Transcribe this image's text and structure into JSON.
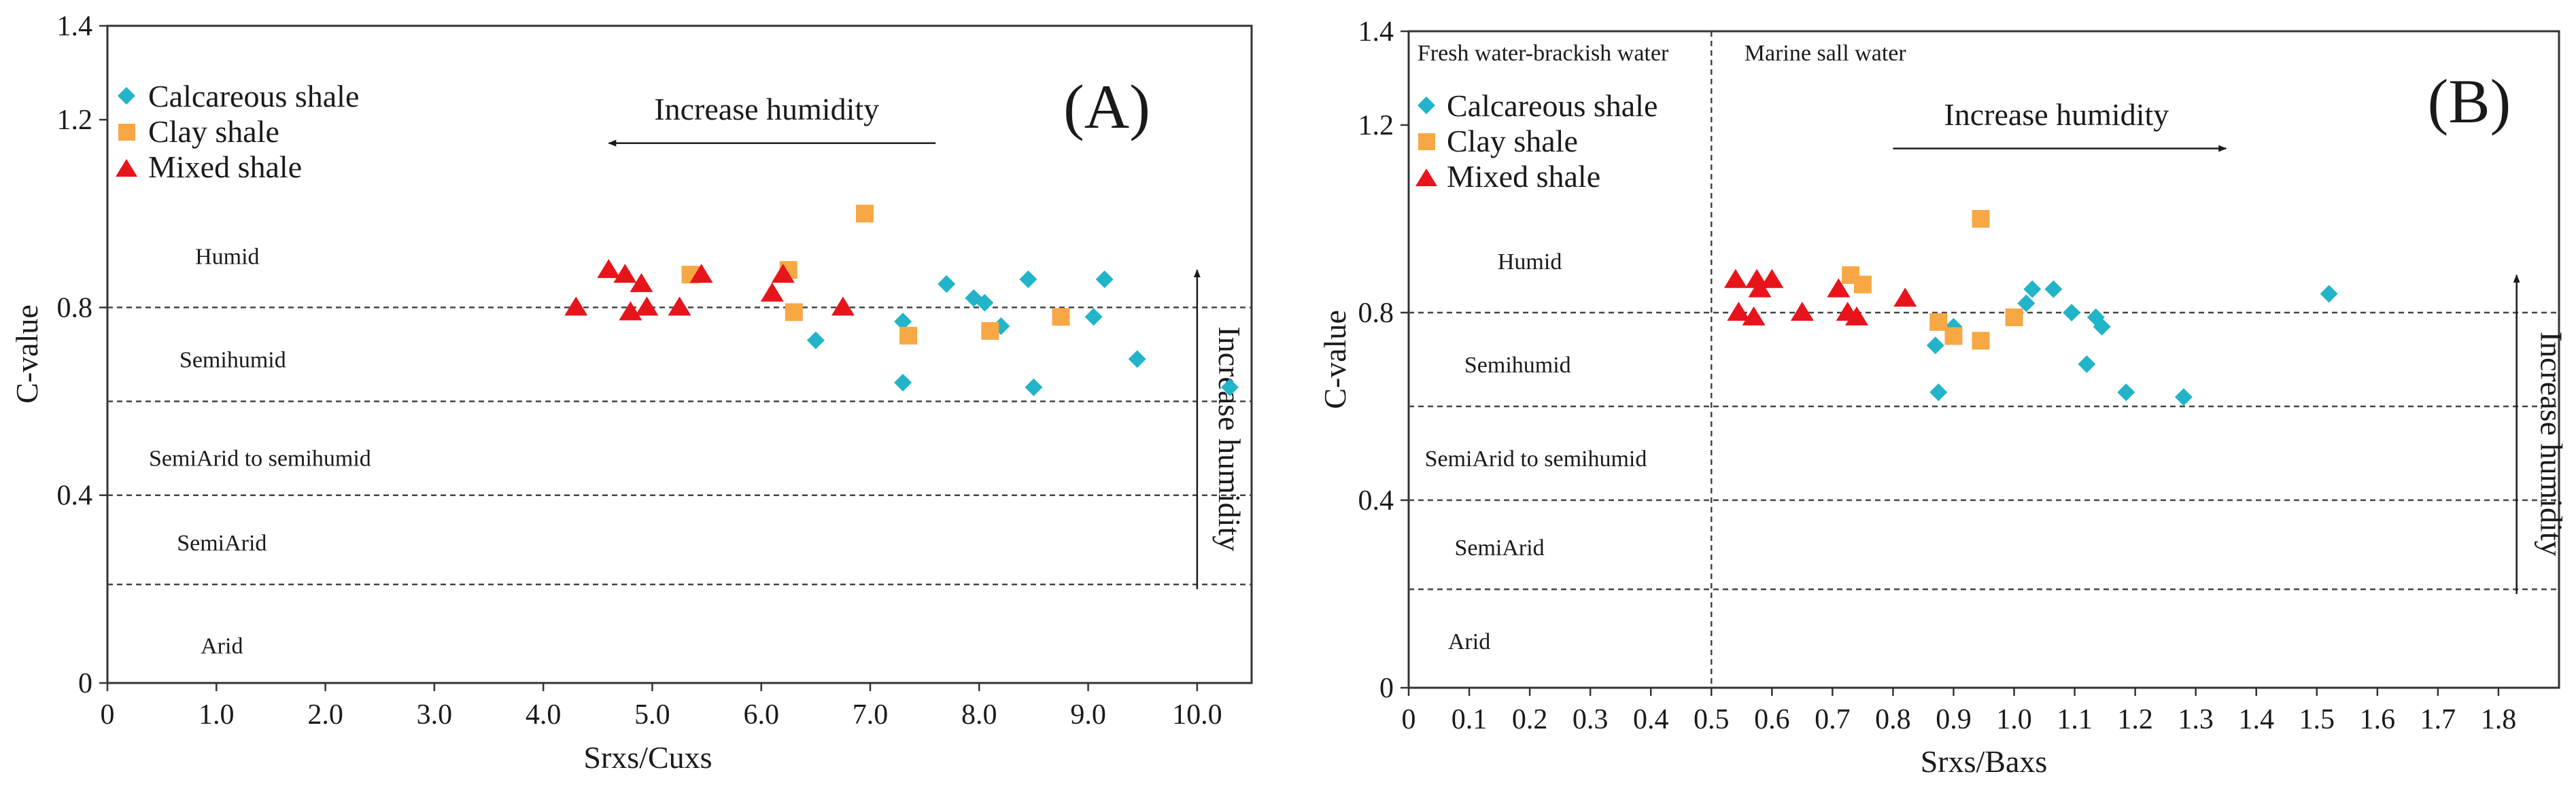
{
  "chart_data": [
    {
      "type": "scatter",
      "panel_label": "(A)",
      "xlabel": "Srxs/Cuxs",
      "ylabel": "C-value",
      "xlim": [
        0,
        10.5
      ],
      "ylim": [
        0,
        1.4
      ],
      "x_ticks": [
        "0",
        "1.0",
        "2.0",
        "3.0",
        "4.0",
        "5.0",
        "6.0",
        "7.0",
        "8.0",
        "9.0",
        "10.0"
      ],
      "y_ticks": [
        "0",
        "0.4",
        "0.8",
        "1.2",
        "1.4"
      ],
      "grid": false,
      "legend_position": "top-left",
      "thresholds": [
        0.8,
        0.6,
        0.4,
        0.21
      ],
      "zones": [
        {
          "label": "Humid",
          "y": 0.91,
          "x": 1.1
        },
        {
          "label": "Semihumid",
          "y": 0.69,
          "x": 1.15
        },
        {
          "label": "SemiArid to semihumid",
          "y": 0.48,
          "x": 1.4
        },
        {
          "label": "SemiArid",
          "y": 0.3,
          "x": 1.05
        },
        {
          "label": "Arid",
          "y": 0.08,
          "x": 1.05
        }
      ],
      "arrows": [
        {
          "label": "Increase humidity",
          "direction": "left",
          "y": 1.15,
          "x_from": 7.6,
          "x_to": 4.6,
          "label_x": 6.05,
          "label_y": 1.2
        },
        {
          "label": "Increase humidity",
          "direction": "up",
          "x": 10.0,
          "y_from": 0.2,
          "y_to": 0.88,
          "label_x": 10.2,
          "label_y": 0.52
        }
      ],
      "series": [
        {
          "name": "Calcareous shale",
          "marker": "diamond",
          "color": "#22b4c8",
          "points": [
            [
              6.5,
              0.73
            ],
            [
              7.3,
              0.77
            ],
            [
              7.3,
              0.64
            ],
            [
              7.7,
              0.85
            ],
            [
              7.95,
              0.82
            ],
            [
              8.05,
              0.81
            ],
            [
              8.2,
              0.76
            ],
            [
              8.45,
              0.86
            ],
            [
              8.5,
              0.63
            ],
            [
              9.05,
              0.78
            ],
            [
              9.15,
              0.86
            ],
            [
              9.45,
              0.69
            ],
            [
              10.3,
              0.63
            ]
          ]
        },
        {
          "name": "Clay shale",
          "marker": "square",
          "color": "#f7a845",
          "points": [
            [
              5.35,
              0.87
            ],
            [
              6.25,
              0.88
            ],
            [
              6.3,
              0.79
            ],
            [
              6.95,
              1.0
            ],
            [
              7.35,
              0.74
            ],
            [
              8.1,
              0.75
            ],
            [
              8.75,
              0.78
            ]
          ]
        },
        {
          "name": "Mixed shale",
          "marker": "triangle",
          "color": "#e8141b",
          "points": [
            [
              4.3,
              0.8
            ],
            [
              4.6,
              0.88
            ],
            [
              4.75,
              0.87
            ],
            [
              4.9,
              0.85
            ],
            [
              4.8,
              0.79
            ],
            [
              4.95,
              0.8
            ],
            [
              5.25,
              0.8
            ],
            [
              5.45,
              0.87
            ],
            [
              6.1,
              0.83
            ],
            [
              6.2,
              0.87
            ],
            [
              6.75,
              0.8
            ]
          ]
        }
      ]
    },
    {
      "type": "scatter",
      "panel_label": "(B)",
      "xlabel": "Srxs/Baxs",
      "ylabel": "C-value",
      "xlim": [
        0,
        1.9
      ],
      "ylim": [
        0,
        1.4
      ],
      "x_ticks": [
        "0",
        "0.1",
        "0.2",
        "0.3",
        "0.4",
        "0.5",
        "0.6",
        "0.7",
        "0.8",
        "0.9",
        "1.0",
        "1.1",
        "1.2",
        "1.3",
        "1.4",
        "1.5",
        "1.6",
        "1.7",
        "1.8"
      ],
      "y_ticks": [
        "0",
        "0.4",
        "0.8",
        "1.2",
        "1.4"
      ],
      "grid": false,
      "legend_position": "top-left",
      "thresholds": [
        0.8,
        0.6,
        0.4,
        0.21
      ],
      "divider_x": 0.5,
      "region_labels": [
        {
          "label": "Fresh water-brackish water",
          "x": 0.01,
          "y": 1.355
        },
        {
          "label": "Marine sall water",
          "x": 0.55,
          "y": 1.355
        }
      ],
      "zones": [
        {
          "label": "Humid",
          "y": 0.91,
          "x": 0.2
        },
        {
          "label": "Semihumid",
          "y": 0.69,
          "x": 0.18
        },
        {
          "label": "SemiArid to semihumid",
          "y": 0.49,
          "x": 0.21
        },
        {
          "label": "SemiArid",
          "y": 0.3,
          "x": 0.15
        },
        {
          "label": "Arid",
          "y": 0.1,
          "x": 0.1
        }
      ],
      "arrows": [
        {
          "label": "Increase humidity",
          "direction": "right",
          "y": 1.15,
          "x_from": 0.8,
          "x_to": 1.35,
          "label_x": 1.07,
          "label_y": 1.2
        },
        {
          "label": "Increase humidity",
          "direction": "up",
          "x": 1.83,
          "y_from": 0.2,
          "y_to": 0.88,
          "label_x": 1.87,
          "label_y": 0.52
        }
      ],
      "series": [
        {
          "name": "Calcareous shale",
          "marker": "diamond",
          "color": "#22b4c8",
          "points": [
            [
              0.87,
              0.73
            ],
            [
              0.875,
              0.63
            ],
            [
              0.9,
              0.77
            ],
            [
              1.02,
              0.82
            ],
            [
              1.03,
              0.85
            ],
            [
              1.065,
              0.85
            ],
            [
              1.095,
              0.8
            ],
            [
              1.12,
              0.69
            ],
            [
              1.135,
              0.79
            ],
            [
              1.145,
              0.77
            ],
            [
              1.185,
              0.63
            ],
            [
              1.28,
              0.62
            ],
            [
              1.52,
              0.84
            ]
          ]
        },
        {
          "name": "Clay shale",
          "marker": "square",
          "color": "#f7a845",
          "points": [
            [
              0.73,
              0.88
            ],
            [
              0.75,
              0.86
            ],
            [
              0.875,
              0.78
            ],
            [
              0.9,
              0.75
            ],
            [
              0.945,
              1.0
            ],
            [
              0.945,
              0.74
            ],
            [
              1.0,
              0.79
            ]
          ]
        },
        {
          "name": "Mixed shale",
          "marker": "triangle",
          "color": "#e8141b",
          "points": [
            [
              0.54,
              0.87
            ],
            [
              0.545,
              0.8
            ],
            [
              0.57,
              0.79
            ],
            [
              0.575,
              0.87
            ],
            [
              0.58,
              0.85
            ],
            [
              0.6,
              0.87
            ],
            [
              0.65,
              0.8
            ],
            [
              0.71,
              0.85
            ],
            [
              0.725,
              0.8
            ],
            [
              0.74,
              0.79
            ],
            [
              0.82,
              0.83
            ]
          ]
        }
      ]
    }
  ]
}
